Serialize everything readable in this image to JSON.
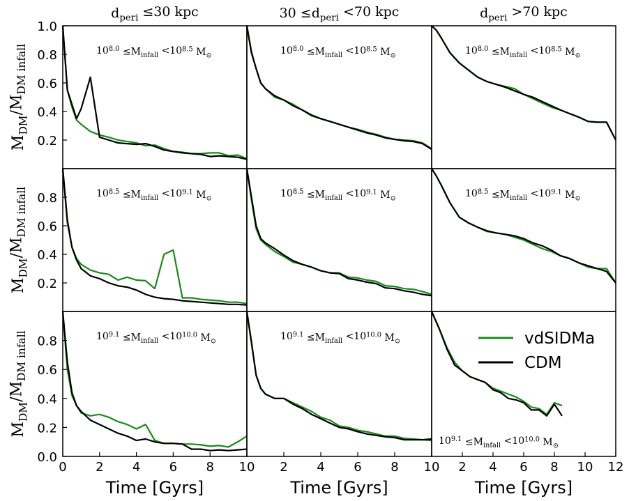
{
  "figure": {
    "xlabel": "Time [Gyrs]",
    "ylabel": "M_DM/M_DM infall",
    "legend": {
      "placement": "panel 2,2 top-right",
      "entries": [
        {
          "name": "vdSIDMa",
          "color": "#1a8a1a"
        },
        {
          "name": "CDM",
          "color": "#000000"
        }
      ]
    }
  },
  "columns": [
    {
      "title": "d_peri ≤30 kpc"
    },
    {
      "title": "30 ≤d_peri <70 kpc"
    },
    {
      "title": "d_peri >70 kpc"
    }
  ],
  "rows": [
    {
      "mass_label": "10^8.0 ≤M_infall <10^8.5 M_⊙"
    },
    {
      "mass_label": "10^8.5 ≤M_infall <10^9.1 M_⊙"
    },
    {
      "mass_label": "10^9.1 ≤M_infall <10^10.0 M_⊙"
    }
  ],
  "chart_data": [
    {
      "type": "line",
      "row": 0,
      "col": 0,
      "xlim": [
        0,
        10
      ],
      "ylim": [
        0,
        1.0
      ],
      "yticks": [
        "0.2",
        "0.4",
        "0.6",
        "0.8",
        "1.0"
      ],
      "xticks": [],
      "series": [
        {
          "name": "vdSIDMa",
          "x": [
            0,
            0.25,
            0.5,
            0.75,
            1.0,
            1.5,
            2.0,
            2.5,
            3.0,
            3.5,
            4.0,
            4.5,
            5.0,
            5.5,
            6.0,
            6.5,
            7.0,
            7.5,
            8.0,
            8.5,
            9.0,
            9.5,
            10.0
          ],
          "y": [
            1.0,
            0.55,
            0.43,
            0.34,
            0.31,
            0.26,
            0.235,
            0.22,
            0.2,
            0.19,
            0.18,
            0.16,
            0.165,
            0.14,
            0.12,
            0.115,
            0.105,
            0.105,
            0.11,
            0.11,
            0.09,
            0.095,
            0.07
          ]
        },
        {
          "name": "CDM",
          "x": [
            0,
            0.25,
            0.5,
            0.75,
            1.0,
            1.5,
            2.0,
            2.5,
            3.0,
            3.5,
            4.0,
            4.5,
            5.0,
            5.5,
            6.0,
            6.5,
            7.0,
            7.5,
            8.0,
            8.5,
            9.0,
            9.5,
            10.0
          ],
          "y": [
            1.0,
            0.55,
            0.45,
            0.35,
            0.42,
            0.64,
            0.22,
            0.2,
            0.18,
            0.175,
            0.17,
            0.175,
            0.155,
            0.13,
            0.12,
            0.11,
            0.105,
            0.1,
            0.085,
            0.09,
            0.085,
            0.08,
            0.065
          ]
        }
      ]
    },
    {
      "type": "line",
      "row": 0,
      "col": 1,
      "xlim": [
        0,
        10
      ],
      "ylim": [
        0,
        1.0
      ],
      "yticks": [],
      "xticks": [],
      "series": [
        {
          "name": "vdSIDMa",
          "x": [
            0,
            0.25,
            0.5,
            0.75,
            1.0,
            1.5,
            2.0,
            2.5,
            3.0,
            3.5,
            4.0,
            4.5,
            5.0,
            5.5,
            6.0,
            6.5,
            7.0,
            7.5,
            8.0,
            8.5,
            9.0,
            9.5,
            10.0
          ],
          "y": [
            1.0,
            0.82,
            0.7,
            0.6,
            0.56,
            0.5,
            0.48,
            0.45,
            0.41,
            0.37,
            0.35,
            0.33,
            0.31,
            0.29,
            0.275,
            0.255,
            0.24,
            0.22,
            0.205,
            0.2,
            0.195,
            0.18,
            0.14
          ]
        },
        {
          "name": "CDM",
          "x": [
            0,
            0.25,
            0.5,
            0.75,
            1.0,
            1.5,
            2.0,
            2.5,
            3.0,
            3.5,
            4.0,
            4.5,
            5.0,
            5.5,
            6.0,
            6.5,
            7.0,
            7.5,
            8.0,
            8.5,
            9.0,
            9.5,
            10.0
          ],
          "y": [
            1.0,
            0.81,
            0.7,
            0.6,
            0.56,
            0.51,
            0.48,
            0.44,
            0.41,
            0.375,
            0.35,
            0.33,
            0.31,
            0.29,
            0.27,
            0.25,
            0.235,
            0.215,
            0.205,
            0.195,
            0.19,
            0.175,
            0.135
          ]
        }
      ]
    },
    {
      "type": "line",
      "row": 0,
      "col": 2,
      "xlim": [
        0,
        10
      ],
      "ylim": [
        0,
        1.0
      ],
      "yticks": [],
      "xticks": [],
      "series": [
        {
          "name": "vdSIDMa",
          "x": [
            0,
            0.25,
            0.5,
            1.0,
            1.5,
            2.0,
            2.5,
            3.0,
            3.5,
            4.0,
            4.5,
            5.0,
            5.5,
            6.0,
            6.5,
            7.0,
            7.5,
            8.0,
            8.5,
            9.0,
            9.5,
            10.0
          ],
          "y": [
            1.0,
            0.97,
            0.92,
            0.81,
            0.74,
            0.69,
            0.64,
            0.61,
            0.59,
            0.575,
            0.56,
            0.52,
            0.49,
            0.46,
            0.43,
            0.41,
            0.385,
            0.36,
            0.33,
            0.325,
            0.325,
            0.2
          ]
        },
        {
          "name": "CDM",
          "x": [
            0,
            0.25,
            0.5,
            1.0,
            1.5,
            2.0,
            2.5,
            3.0,
            3.5,
            4.0,
            4.5,
            5.0,
            5.5,
            6.0,
            6.5,
            7.0,
            7.5,
            8.0,
            8.5,
            9.0,
            9.5,
            10.0
          ],
          "y": [
            1.0,
            0.97,
            0.92,
            0.81,
            0.74,
            0.69,
            0.64,
            0.61,
            0.59,
            0.57,
            0.545,
            0.52,
            0.5,
            0.47,
            0.44,
            0.41,
            0.385,
            0.36,
            0.33,
            0.325,
            0.325,
            0.2
          ]
        }
      ]
    },
    {
      "type": "line",
      "row": 1,
      "col": 0,
      "xlim": [
        0,
        10
      ],
      "ylim": [
        0,
        1.0
      ],
      "yticks": [
        "0.2",
        "0.4",
        "0.6",
        "0.8"
      ],
      "xticks": [],
      "series": [
        {
          "name": "vdSIDMa",
          "x": [
            0,
            0.25,
            0.5,
            0.75,
            1.0,
            1.5,
            2.0,
            2.5,
            3.0,
            3.5,
            4.0,
            4.5,
            5.0,
            5.5,
            6.0,
            6.5,
            7.0,
            7.5,
            8.0,
            8.5,
            9.0,
            9.5,
            10.0
          ],
          "y": [
            1.0,
            0.62,
            0.45,
            0.37,
            0.33,
            0.29,
            0.27,
            0.26,
            0.22,
            0.24,
            0.22,
            0.215,
            0.16,
            0.4,
            0.43,
            0.095,
            0.095,
            0.085,
            0.08,
            0.075,
            0.065,
            0.065,
            0.055
          ]
        },
        {
          "name": "CDM",
          "x": [
            0,
            0.25,
            0.5,
            0.75,
            1.0,
            1.5,
            2.0,
            2.5,
            3.0,
            3.5,
            4.0,
            4.5,
            5.0,
            5.5,
            6.0,
            6.5,
            7.0,
            7.5,
            8.0,
            8.5,
            9.0,
            9.5,
            10.0
          ],
          "y": [
            1.0,
            0.64,
            0.45,
            0.36,
            0.3,
            0.25,
            0.23,
            0.2,
            0.18,
            0.17,
            0.15,
            0.12,
            0.1,
            0.09,
            0.085,
            0.075,
            0.07,
            0.065,
            0.06,
            0.055,
            0.05,
            0.05,
            0.045
          ]
        }
      ]
    },
    {
      "type": "line",
      "row": 1,
      "col": 1,
      "xlim": [
        0,
        10
      ],
      "ylim": [
        0,
        1.0
      ],
      "yticks": [],
      "xticks": [],
      "series": [
        {
          "name": "vdSIDMa",
          "x": [
            0,
            0.25,
            0.5,
            0.75,
            1.0,
            1.5,
            2.0,
            2.5,
            3.0,
            3.5,
            4.0,
            4.5,
            5.0,
            5.5,
            6.0,
            6.5,
            7.0,
            7.5,
            8.0,
            8.5,
            9.0,
            9.5,
            10.0
          ],
          "y": [
            1.0,
            0.78,
            0.58,
            0.5,
            0.47,
            0.42,
            0.385,
            0.345,
            0.33,
            0.31,
            0.285,
            0.27,
            0.27,
            0.24,
            0.235,
            0.22,
            0.21,
            0.18,
            0.175,
            0.16,
            0.155,
            0.14,
            0.12
          ]
        },
        {
          "name": "CDM",
          "x": [
            0,
            0.25,
            0.5,
            0.75,
            1.0,
            1.5,
            2.0,
            2.5,
            3.0,
            3.5,
            4.0,
            4.5,
            5.0,
            5.5,
            6.0,
            6.5,
            7.0,
            7.5,
            8.0,
            8.5,
            9.0,
            9.5,
            10.0
          ],
          "y": [
            1.0,
            0.8,
            0.6,
            0.51,
            0.48,
            0.44,
            0.395,
            0.355,
            0.33,
            0.31,
            0.285,
            0.27,
            0.265,
            0.23,
            0.22,
            0.205,
            0.195,
            0.165,
            0.16,
            0.145,
            0.135,
            0.12,
            0.11
          ]
        }
      ]
    },
    {
      "type": "line",
      "row": 1,
      "col": 2,
      "xlim": [
        0,
        10
      ],
      "ylim": [
        0,
        1.0
      ],
      "yticks": [],
      "xticks": [],
      "series": [
        {
          "name": "vdSIDMa",
          "x": [
            0,
            0.25,
            0.5,
            1.0,
            1.5,
            2.0,
            2.5,
            3.0,
            3.5,
            4.0,
            4.5,
            5.0,
            5.5,
            6.0,
            6.5,
            7.0,
            7.5,
            8.0,
            8.5,
            9.0,
            9.5,
            10.0
          ],
          "y": [
            1.0,
            0.95,
            0.89,
            0.76,
            0.66,
            0.62,
            0.59,
            0.56,
            0.55,
            0.54,
            0.52,
            0.5,
            0.47,
            0.44,
            0.42,
            0.39,
            0.37,
            0.34,
            0.31,
            0.3,
            0.3,
            0.2
          ]
        },
        {
          "name": "CDM",
          "x": [
            0,
            0.25,
            0.5,
            1.0,
            1.5,
            2.0,
            2.5,
            3.0,
            3.5,
            4.0,
            4.5,
            5.0,
            5.5,
            6.0,
            6.5,
            7.0,
            7.5,
            8.0,
            8.5,
            9.0,
            9.5,
            10.0
          ],
          "y": [
            1.0,
            0.95,
            0.89,
            0.76,
            0.66,
            0.62,
            0.59,
            0.565,
            0.55,
            0.54,
            0.53,
            0.51,
            0.48,
            0.46,
            0.43,
            0.39,
            0.37,
            0.34,
            0.32,
            0.3,
            0.28,
            0.2
          ]
        }
      ]
    },
    {
      "type": "line",
      "row": 2,
      "col": 0,
      "xlim": [
        0,
        10
      ],
      "ylim": [
        0,
        1.0
      ],
      "yticks": [
        "0.0",
        "0.2",
        "0.4",
        "0.6",
        "0.8"
      ],
      "xticks": [
        "0",
        "2",
        "4",
        "6",
        "8",
        "10"
      ],
      "series": [
        {
          "name": "vdSIDMa",
          "x": [
            0,
            0.25,
            0.5,
            0.75,
            1.0,
            1.5,
            2.0,
            2.5,
            3.0,
            3.5,
            4.0,
            4.5,
            5.0,
            5.5,
            6.0,
            6.5,
            7.0,
            7.5,
            8.0,
            8.5,
            9.0,
            9.5,
            10.0
          ],
          "y": [
            1.0,
            0.6,
            0.42,
            0.35,
            0.3,
            0.28,
            0.29,
            0.27,
            0.24,
            0.22,
            0.19,
            0.22,
            0.11,
            0.09,
            0.09,
            0.085,
            0.085,
            0.08,
            0.07,
            0.075,
            0.065,
            0.1,
            0.14
          ]
        },
        {
          "name": "CDM",
          "x": [
            0,
            0.25,
            0.5,
            0.75,
            1.0,
            1.5,
            2.0,
            2.5,
            3.0,
            3.5,
            4.0,
            4.5,
            5.0,
            5.5,
            6.0,
            6.5,
            7.0,
            7.5,
            8.0,
            8.5,
            9.0,
            9.5,
            10.0
          ],
          "y": [
            1.0,
            0.65,
            0.44,
            0.35,
            0.31,
            0.25,
            0.22,
            0.19,
            0.16,
            0.14,
            0.11,
            0.12,
            0.1,
            0.09,
            0.09,
            0.085,
            0.05,
            0.05,
            0.04,
            0.045,
            0.04,
            0.045,
            0.05
          ]
        }
      ]
    },
    {
      "type": "line",
      "row": 2,
      "col": 1,
      "xlim": [
        0,
        10
      ],
      "ylim": [
        0,
        1.0
      ],
      "yticks": [],
      "xticks": [
        "2",
        "4",
        "6",
        "8",
        "10"
      ],
      "series": [
        {
          "name": "vdSIDMa",
          "x": [
            0,
            0.25,
            0.5,
            0.75,
            1.0,
            1.5,
            2.0,
            2.5,
            3.0,
            3.5,
            4.0,
            4.5,
            5.0,
            5.5,
            6.0,
            6.5,
            7.0,
            7.5,
            8.0,
            8.5,
            9.0,
            9.5,
            10.0
          ],
          "y": [
            1.0,
            0.78,
            0.56,
            0.47,
            0.43,
            0.4,
            0.4,
            0.37,
            0.34,
            0.31,
            0.27,
            0.25,
            0.21,
            0.2,
            0.18,
            0.17,
            0.155,
            0.14,
            0.14,
            0.125,
            0.12,
            0.115,
            0.11
          ]
        },
        {
          "name": "CDM",
          "x": [
            0,
            0.25,
            0.5,
            0.75,
            1.0,
            1.5,
            2.0,
            2.5,
            3.0,
            3.5,
            4.0,
            4.5,
            5.0,
            5.5,
            6.0,
            6.5,
            7.0,
            7.5,
            8.0,
            8.5,
            9.0,
            9.5,
            10.0
          ],
          "y": [
            1.0,
            0.79,
            0.56,
            0.47,
            0.43,
            0.4,
            0.4,
            0.36,
            0.33,
            0.29,
            0.26,
            0.23,
            0.2,
            0.19,
            0.17,
            0.155,
            0.145,
            0.135,
            0.13,
            0.115,
            0.115,
            0.115,
            0.12
          ]
        }
      ]
    },
    {
      "type": "line",
      "row": 2,
      "col": 2,
      "xlim": [
        0,
        12
      ],
      "ylim": [
        0,
        1.0
      ],
      "yticks": [],
      "xticks": [
        "2",
        "4",
        "6",
        "8",
        "10",
        "12"
      ],
      "series": [
        {
          "name": "vdSIDMa",
          "x": [
            0,
            0.5,
            1.0,
            1.5,
            2.0,
            2.5,
            3.0,
            3.5,
            4.0,
            4.5,
            5.0,
            5.5,
            6.0,
            6.5,
            7.0,
            7.5,
            8.0,
            8.5
          ],
          "y": [
            1.0,
            0.88,
            0.75,
            0.65,
            0.59,
            0.55,
            0.53,
            0.51,
            0.47,
            0.45,
            0.43,
            0.41,
            0.38,
            0.34,
            0.33,
            0.29,
            0.37,
            0.35
          ]
        },
        {
          "name": "CDM",
          "x": [
            0,
            0.5,
            1.0,
            1.5,
            2.0,
            2.5,
            3.0,
            3.5,
            4.0,
            4.5,
            5.0,
            5.5,
            6.0,
            6.5,
            7.0,
            7.5,
            8.0,
            8.5
          ],
          "y": [
            1.0,
            0.88,
            0.74,
            0.63,
            0.59,
            0.55,
            0.53,
            0.51,
            0.46,
            0.44,
            0.4,
            0.39,
            0.37,
            0.32,
            0.32,
            0.28,
            0.36,
            0.28
          ]
        }
      ]
    }
  ]
}
